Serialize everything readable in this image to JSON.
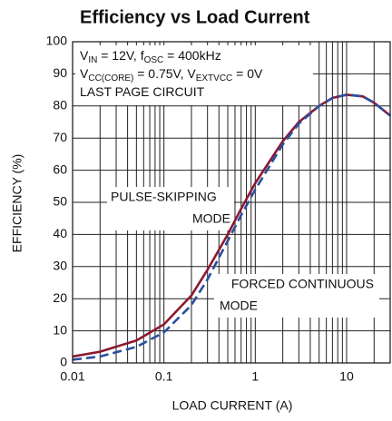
{
  "chart_data": {
    "type": "line",
    "title": "Efficiency vs Load Current",
    "xlabel": "LOAD CURRENT (A)",
    "ylabel": "EFFICIENCY (%)",
    "xscale": "log",
    "xlim": [
      0.01,
      30
    ],
    "xticks": [
      0.01,
      0.1,
      1,
      10
    ],
    "ylim": [
      0,
      100
    ],
    "yticks": [
      0,
      10,
      20,
      30,
      40,
      50,
      60,
      70,
      80,
      90,
      100
    ],
    "grid": true,
    "x": [
      0.01,
      0.02,
      0.05,
      0.1,
      0.2,
      0.3,
      0.5,
      0.7,
      1,
      2,
      3,
      5,
      7,
      10,
      15,
      20,
      30
    ],
    "series": [
      {
        "name": "PULSE-SKIPPING MODE",
        "color": "#8b1a30",
        "dash": false,
        "values": [
          2,
          3.5,
          7,
          12,
          21,
          29,
          40,
          48,
          56,
          69,
          75,
          80,
          82.5,
          83.5,
          83,
          81,
          77
        ]
      },
      {
        "name": "FORCED CONTINUOUS MODE",
        "color": "#2a4fa0",
        "dash": true,
        "values": [
          1,
          2,
          5,
          9.5,
          18,
          26,
          38,
          46,
          54,
          68,
          74.5,
          80,
          82.5,
          83.5,
          83,
          81,
          77
        ]
      }
    ],
    "annotations": [
      [
        "V",
        "IN",
        " = 12V, f",
        "OSC",
        " = 400kHz"
      ],
      [
        "V",
        "CC(CORE)",
        " = 0.75V, V",
        "EXTVCC",
        " = 0V"
      ],
      [
        "LAST PAGE CIRCUIT"
      ]
    ],
    "series_labels": [
      [
        "PULSE-SKIPPING",
        "MODE"
      ],
      [
        "FORCED CONTINUOUS",
        "MODE"
      ]
    ]
  }
}
